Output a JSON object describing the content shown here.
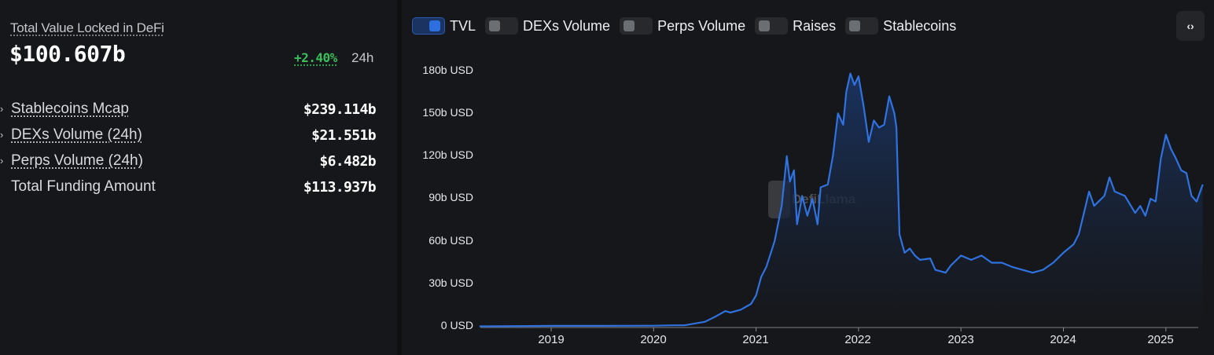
{
  "summary": {
    "tvl_label": "Total Value Locked in DeFi",
    "tvl_value": "$100.607b",
    "tvl_change": "+2.40%",
    "tvl_change_period": "24h",
    "tvl_change_color": "#3cbf5a",
    "stats": [
      {
        "label": "Stablecoins Mcap",
        "value": "$239.114b",
        "expandable": true,
        "icon": "chevron-right-icon"
      },
      {
        "label": "DEXs Volume (24h)",
        "value": "$21.551b",
        "expandable": true,
        "icon": "chevron-right-icon"
      },
      {
        "label": "Perps Volume (24h)",
        "value": "$6.482b",
        "expandable": true,
        "icon": "chevron-right-icon"
      },
      {
        "label": "Total Funding Amount",
        "value": "$113.937b",
        "expandable": false
      }
    ],
    "chevron_glyph": "›"
  },
  "legend": {
    "items": [
      {
        "label": "TVL",
        "on": true
      },
      {
        "label": "DEXs Volume",
        "on": false
      },
      {
        "label": "Perps Volume",
        "on": false
      },
      {
        "label": "Raises",
        "on": false
      },
      {
        "label": "Stablecoins",
        "on": false
      }
    ],
    "embed_button_glyph": "‹›",
    "embed_button_icon": "code-icon"
  },
  "watermark": {
    "text": "DefiLlama"
  },
  "colors": {
    "line": "#2f72e0",
    "fill_top": "#1a3462",
    "fill_bottom": "#16171a",
    "axis": "#5a5c60",
    "accent": "#2e6fe0"
  },
  "chart_data": {
    "type": "area",
    "title": "TVL",
    "xlabel": "",
    "ylabel": "",
    "ylim": [
      0,
      180
    ],
    "y_unit": "b USD",
    "y_ticks": [
      "0 USD",
      "30b USD",
      "60b USD",
      "90b USD",
      "120b USD",
      "150b USD",
      "180b USD"
    ],
    "x_ticks": [
      "2019",
      "2020",
      "2021",
      "2022",
      "2023",
      "2024",
      "2025"
    ],
    "grid": false,
    "legend_position": "top",
    "series": [
      {
        "name": "TVL",
        "x": [
          2018.3,
          2018.8,
          2019.0,
          2019.5,
          2020.0,
          2020.2,
          2020.3,
          2020.5,
          2020.6,
          2020.7,
          2020.75,
          2020.85,
          2020.95,
          2021.0,
          2021.05,
          2021.1,
          2021.18,
          2021.25,
          2021.3,
          2021.33,
          2021.37,
          2021.4,
          2021.45,
          2021.5,
          2021.55,
          2021.6,
          2021.63,
          2021.7,
          2021.75,
          2021.8,
          2021.85,
          2021.88,
          2021.92,
          2021.96,
          2022.0,
          2022.05,
          2022.1,
          2022.15,
          2022.2,
          2022.25,
          2022.3,
          2022.35,
          2022.37,
          2022.4,
          2022.45,
          2022.5,
          2022.55,
          2022.6,
          2022.7,
          2022.75,
          2022.85,
          2022.9,
          2023.0,
          2023.1,
          2023.2,
          2023.3,
          2023.4,
          2023.5,
          2023.6,
          2023.7,
          2023.8,
          2023.9,
          2024.0,
          2024.1,
          2024.15,
          2024.2,
          2024.25,
          2024.3,
          2024.4,
          2024.45,
          2024.5,
          2024.6,
          2024.7,
          2024.75,
          2024.8,
          2024.85,
          2024.9,
          2024.95,
          2025.0,
          2025.05,
          2025.1,
          2025.15,
          2025.2,
          2025.25,
          2025.3,
          2025.36
        ],
        "values": [
          0.3,
          0.5,
          0.6,
          0.6,
          0.7,
          1.0,
          1.0,
          3.5,
          7,
          11,
          10,
          12,
          16,
          22,
          35,
          42,
          60,
          85,
          120,
          102,
          110,
          72,
          92,
          78,
          90,
          72,
          98,
          100,
          120,
          150,
          142,
          165,
          178,
          170,
          176,
          155,
          130,
          145,
          140,
          142,
          162,
          150,
          140,
          65,
          52,
          55,
          50,
          47,
          48,
          40,
          38,
          43,
          50,
          47,
          50,
          45,
          45,
          42,
          40,
          38,
          40,
          45,
          52,
          58,
          65,
          80,
          95,
          85,
          92,
          105,
          95,
          92,
          80,
          85,
          78,
          90,
          88,
          118,
          135,
          125,
          118,
          110,
          108,
          92,
          88,
          100
        ]
      }
    ]
  }
}
